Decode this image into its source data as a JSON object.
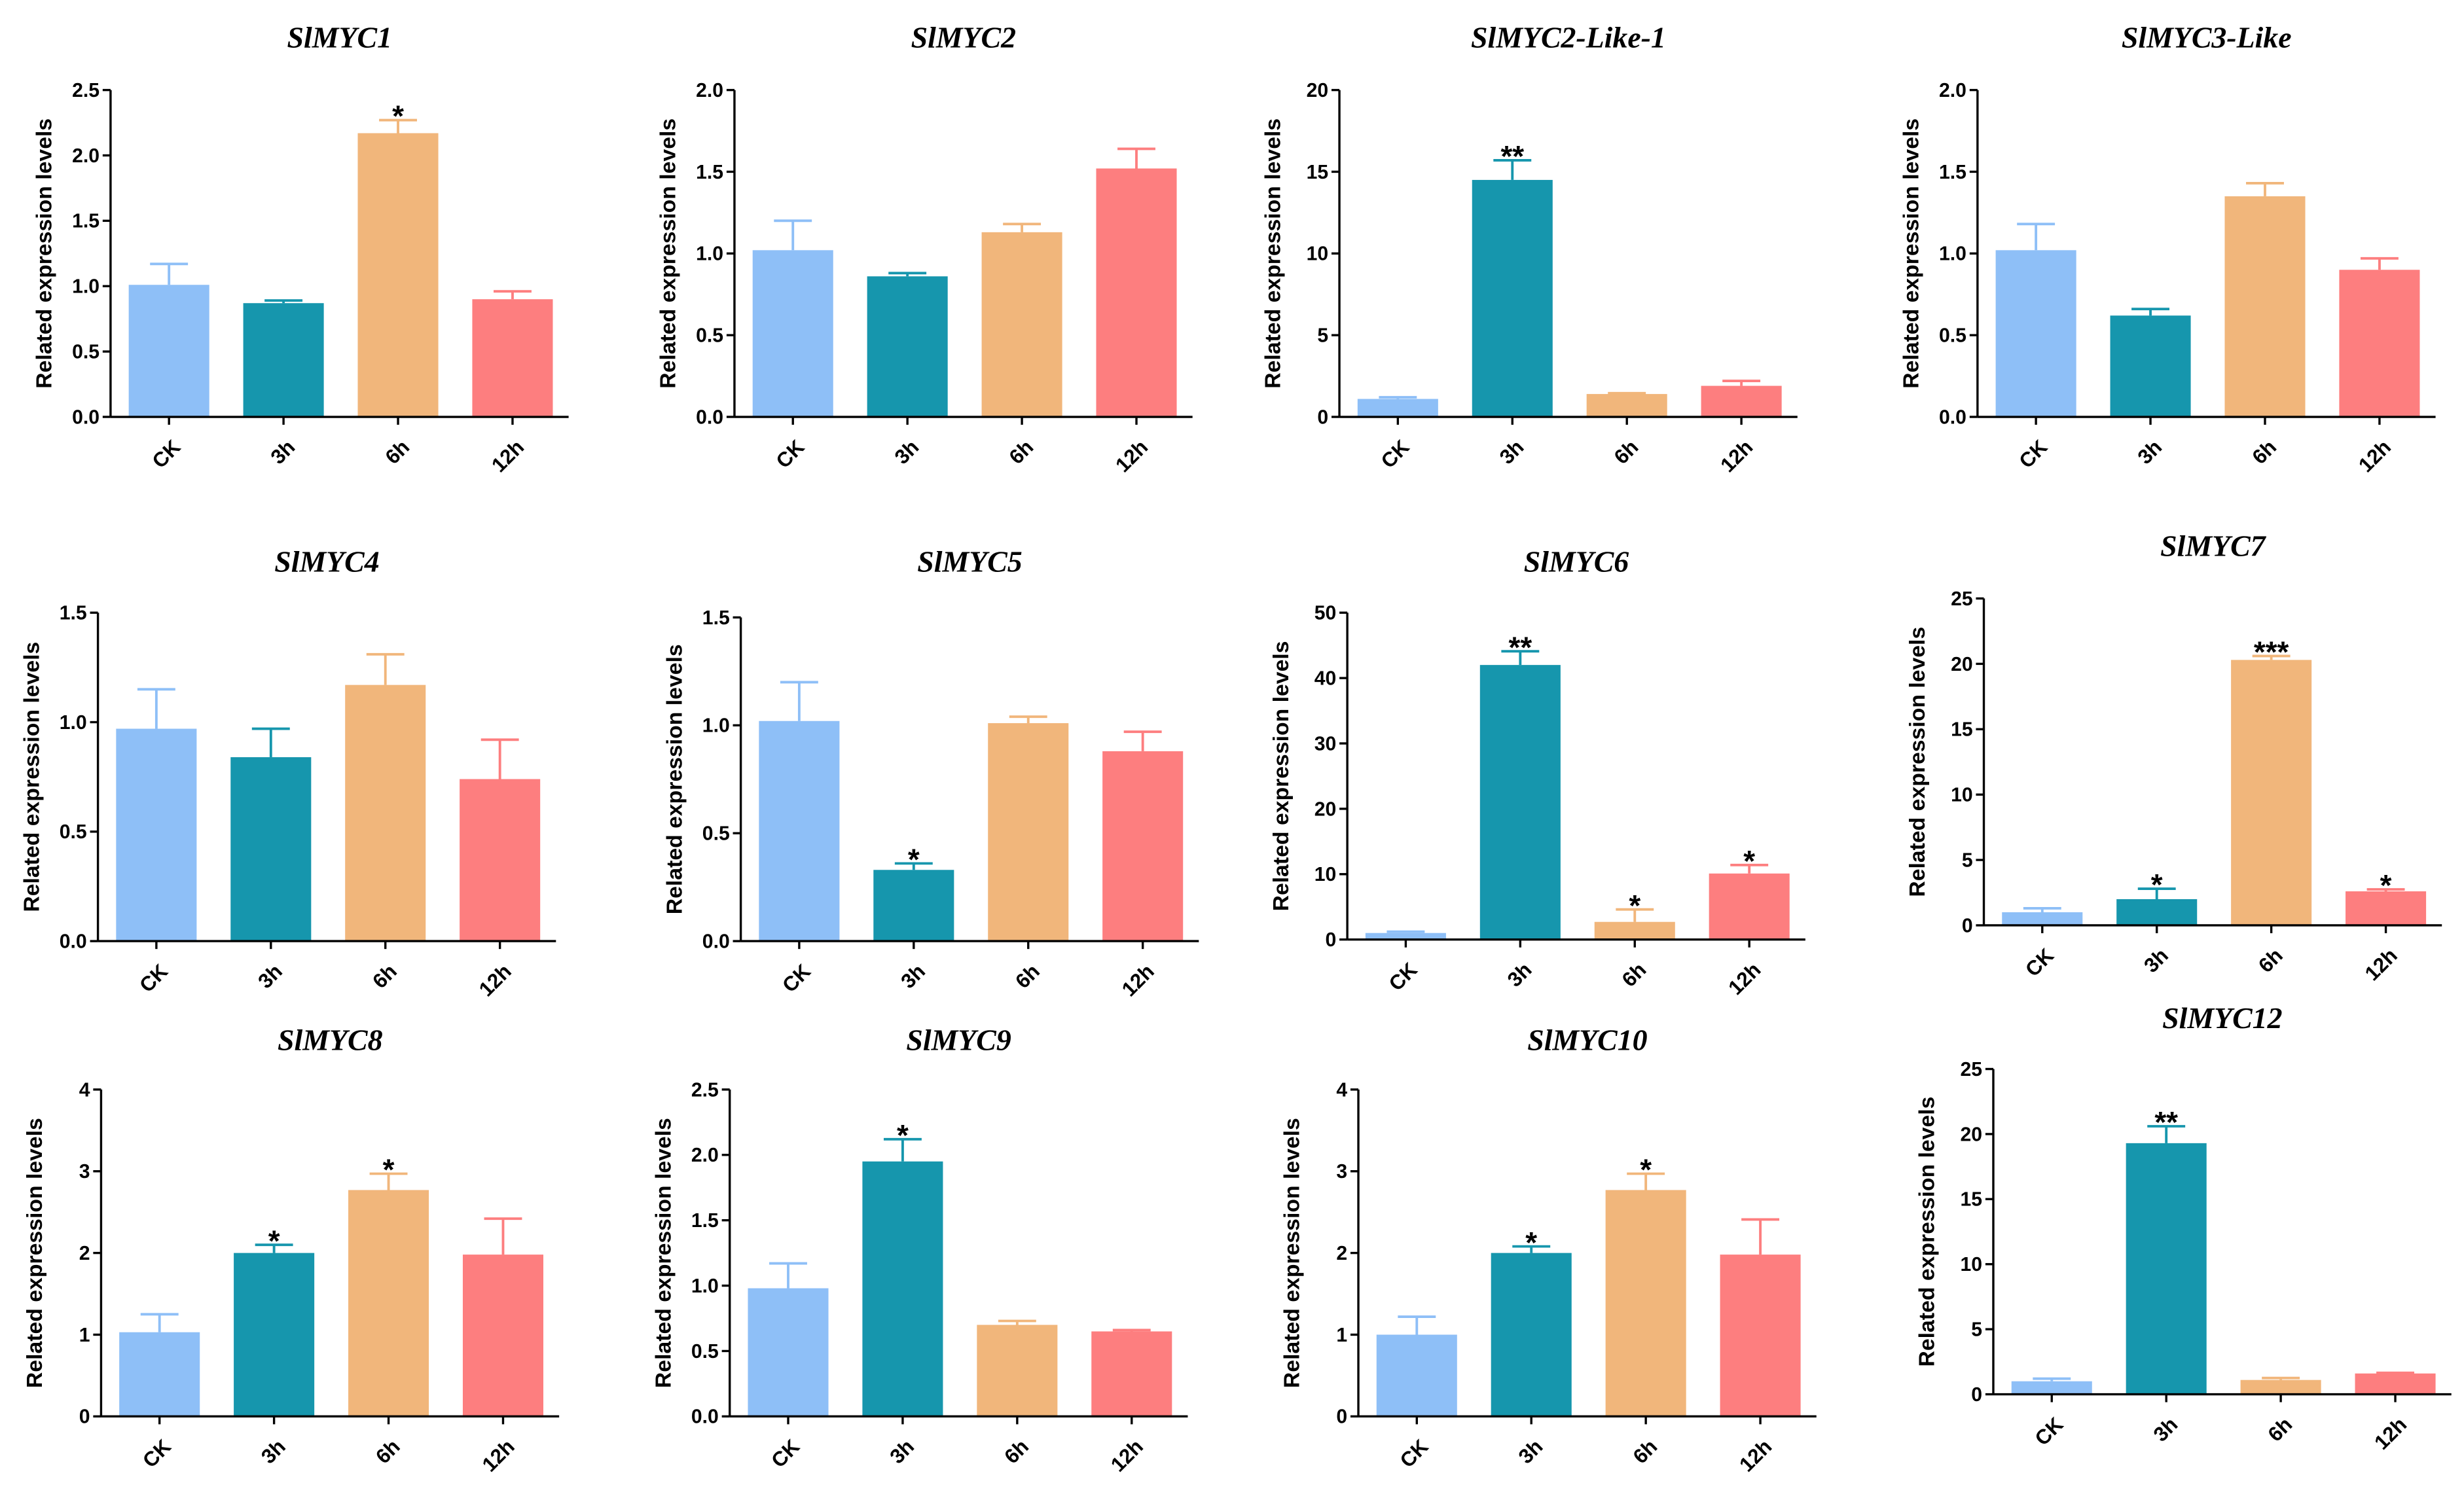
{
  "figure": {
    "colors": [
      "#8ebff7",
      "#1696ad",
      "#f1b67b",
      "#fd7e7f"
    ]
  },
  "chart_data": [
    {
      "type": "bar",
      "title": "SlMYC1",
      "ylabel": "Related expression levels",
      "categories": [
        "CK",
        "3h",
        "6h",
        "12h"
      ],
      "values": [
        1.01,
        0.87,
        2.17,
        0.9
      ],
      "errors": [
        0.16,
        0.02,
        0.1,
        0.06
      ],
      "significance": {
        "6h": "*"
      },
      "ylim": [
        0,
        2.5
      ],
      "yticks": [
        "0.0",
        "0.5",
        "1.0",
        "1.5",
        "2.0",
        "2.5"
      ]
    },
    {
      "type": "bar",
      "title": "SlMYC2",
      "ylabel": "Related expression levels",
      "categories": [
        "CK",
        "3h",
        "6h",
        "12h"
      ],
      "values": [
        1.02,
        0.86,
        1.13,
        1.52
      ],
      "errors": [
        0.18,
        0.02,
        0.05,
        0.12
      ],
      "significance": {},
      "ylim": [
        0,
        2.0
      ],
      "yticks": [
        "0.0",
        "0.5",
        "1.0",
        "1.5",
        "2.0"
      ]
    },
    {
      "type": "bar",
      "title": "SlMYC2-Like-1",
      "ylabel": "Related expression levels",
      "categories": [
        "CK",
        "3h",
        "6h",
        "12h"
      ],
      "values": [
        1.1,
        14.5,
        1.4,
        1.9
      ],
      "errors": [
        0.1,
        1.2,
        0.05,
        0.3
      ],
      "significance": {
        "3h": "**"
      },
      "ylim": [
        0,
        20
      ],
      "yticks": [
        "0",
        "5",
        "10",
        "15",
        "20"
      ]
    },
    {
      "type": "bar",
      "title": "SlMYC3-Like",
      "ylabel": "Related expression levels",
      "categories": [
        "CK",
        "3h",
        "6h",
        "12h"
      ],
      "values": [
        1.02,
        0.62,
        1.35,
        0.9
      ],
      "errors": [
        0.16,
        0.04,
        0.08,
        0.07
      ],
      "significance": {},
      "ylim": [
        0,
        2.0
      ],
      "yticks": [
        "0.0",
        "0.5",
        "1.0",
        "1.5",
        "2.0"
      ]
    },
    {
      "type": "bar",
      "title": "SlMYC4",
      "ylabel": "Related expression levels",
      "categories": [
        "CK",
        "3h",
        "6h",
        "12h"
      ],
      "values": [
        0.97,
        0.84,
        1.17,
        0.74
      ],
      "errors": [
        0.18,
        0.13,
        0.14,
        0.18
      ],
      "significance": {},
      "ylim": [
        0,
        1.5
      ],
      "yticks": [
        "0.0",
        "0.5",
        "1.0",
        "1.5"
      ]
    },
    {
      "type": "bar",
      "title": "SlMYC5",
      "ylabel": "Related expression levels",
      "categories": [
        "CK",
        "3h",
        "6h",
        "12h"
      ],
      "values": [
        1.02,
        0.33,
        1.01,
        0.88
      ],
      "errors": [
        0.18,
        0.03,
        0.03,
        0.09
      ],
      "significance": {
        "3h": "*"
      },
      "ylim": [
        0,
        1.5
      ],
      "yticks": [
        "0.0",
        "0.5",
        "1.0",
        "1.5"
      ]
    },
    {
      "type": "bar",
      "title": "SlMYC6",
      "ylabel": "Related expression levels",
      "categories": [
        "CK",
        "3h",
        "6h",
        "12h"
      ],
      "values": [
        1.0,
        42.0,
        2.7,
        10.1
      ],
      "errors": [
        0.2,
        2.1,
        1.9,
        1.3
      ],
      "significance": {
        "3h": "**",
        "6h": "*",
        "12h": "*"
      },
      "ylim": [
        0,
        50
      ],
      "yticks": [
        "0",
        "10",
        "20",
        "30",
        "40",
        "50"
      ]
    },
    {
      "type": "bar",
      "title": "SlMYC7",
      "ylabel": "Related expression levels",
      "categories": [
        "CK",
        "3h",
        "6h",
        "12h"
      ],
      "values": [
        1.0,
        2.0,
        20.3,
        2.6
      ],
      "errors": [
        0.3,
        0.8,
        0.3,
        0.15
      ],
      "significance": {
        "3h": "*",
        "6h": "***",
        "12h": "*"
      },
      "ylim": [
        0,
        25
      ],
      "yticks": [
        "0",
        "5",
        "10",
        "15",
        "20",
        "25"
      ]
    },
    {
      "type": "bar",
      "title": "SlMYC8",
      "ylabel": "Related expression levels",
      "categories": [
        "CK",
        "3h",
        "6h",
        "12h"
      ],
      "values": [
        1.03,
        2.0,
        2.77,
        1.98
      ],
      "errors": [
        0.22,
        0.1,
        0.2,
        0.44
      ],
      "significance": {
        "3h": "*",
        "6h": "*"
      },
      "ylim": [
        0,
        4
      ],
      "yticks": [
        "0",
        "1",
        "2",
        "3",
        "4"
      ]
    },
    {
      "type": "bar",
      "title": "SlMYC9",
      "ylabel": "Related expression levels",
      "categories": [
        "CK",
        "3h",
        "6h",
        "12h"
      ],
      "values": [
        0.98,
        1.95,
        0.7,
        0.65
      ],
      "errors": [
        0.19,
        0.17,
        0.03,
        0.01
      ],
      "significance": {
        "3h": "*"
      },
      "ylim": [
        0,
        2.5
      ],
      "yticks": [
        "0.0",
        "0.5",
        "1.0",
        "1.5",
        "2.0",
        "2.5"
      ]
    },
    {
      "type": "bar",
      "title": "SlMYC10",
      "ylabel": "Related expression levels",
      "categories": [
        "CK",
        "3h",
        "6h",
        "12h"
      ],
      "values": [
        1.0,
        2.0,
        2.77,
        1.98
      ],
      "errors": [
        0.22,
        0.08,
        0.2,
        0.43
      ],
      "significance": {
        "3h": "*",
        "6h": "*"
      },
      "ylim": [
        0,
        4
      ],
      "yticks": [
        "0",
        "1",
        "2",
        "3",
        "4"
      ]
    },
    {
      "type": "bar",
      "title": "SlMYC12",
      "ylabel": "Related expression levels",
      "categories": [
        "CK",
        "3h",
        "6h",
        "12h"
      ],
      "values": [
        1.0,
        19.3,
        1.1,
        1.6
      ],
      "errors": [
        0.2,
        1.3,
        0.15,
        0.05
      ],
      "significance": {
        "3h": "**"
      },
      "ylim": [
        0,
        25
      ],
      "yticks": [
        "0",
        "5",
        "10",
        "15",
        "20",
        "25"
      ]
    }
  ]
}
